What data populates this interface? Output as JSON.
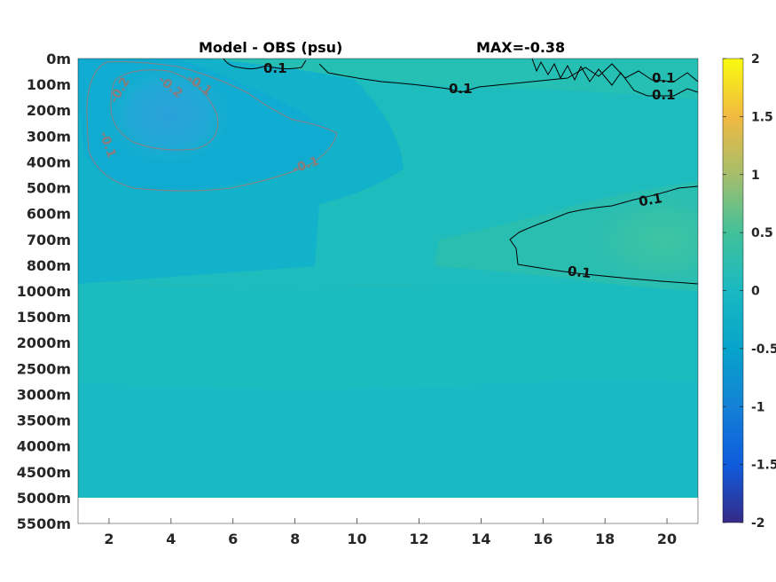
{
  "title": {
    "left": "Model - OBS (psu)",
    "right": "MAX=-0.38"
  },
  "chart_data": {
    "type": "heatmap",
    "title": "Model - OBS (psu)",
    "annotation": "MAX=-0.38",
    "x_ticks": [
      "2",
      "4",
      "6",
      "8",
      "10",
      "12",
      "14",
      "16",
      "18",
      "20"
    ],
    "xlim": [
      1,
      21
    ],
    "y_levels": [
      "0m",
      "100m",
      "200m",
      "300m",
      "400m",
      "500m",
      "600m",
      "700m",
      "800m",
      "1000m",
      "1500m",
      "2000m",
      "2500m",
      "3000m",
      "3500m",
      "4000m",
      "4500m",
      "5000m",
      "5500m"
    ],
    "data_bottom_level": "5000m",
    "colorbar": {
      "colormap": "parula",
      "range": [
        -2,
        2
      ],
      "ticks": [
        "2",
        "1.5",
        "1",
        "0.5",
        "0",
        "-0.5",
        "-1",
        "-1.5",
        "-2"
      ]
    },
    "field_color_example": {
      "high": "#fde725",
      "low": "#352a87",
      "zero": "#1ab9c2"
    },
    "regions": [
      {
        "name": "upper-left negative anomaly",
        "x_range": [
          1,
          9.5
        ],
        "depth_range": [
          "0m",
          "500m"
        ],
        "value": -0.3
      },
      {
        "name": "core minimum",
        "x_range": [
          2.5,
          5
        ],
        "depth_range": [
          "100m",
          "300m"
        ],
        "value": -0.38
      },
      {
        "name": "right-side positive anomaly",
        "x_range": [
          15,
          21
        ],
        "depth_range": [
          "500m",
          "1000m"
        ],
        "value": 0.15
      },
      {
        "name": "near-surface positive band",
        "x_range": [
          6,
          21
        ],
        "depth_range": [
          "0m",
          "100m"
        ],
        "value": 0.1
      },
      {
        "name": "deep water",
        "x_range": [
          1,
          21
        ],
        "depth_range": [
          "1000m",
          "5000m"
        ],
        "value": 0.02
      }
    ],
    "contour_labels": [
      {
        "text": "0.1",
        "x": 7.4,
        "depth": "0m"
      },
      {
        "text": "0.1",
        "x": 13.2,
        "depth": "100m"
      },
      {
        "text": "0.1",
        "x": 19.4,
        "depth": "100m"
      },
      {
        "text": "0.1",
        "x": 19.4,
        "depth": "100m"
      },
      {
        "text": "0.1",
        "x": 19.4,
        "depth": "600m"
      },
      {
        "text": "0.1",
        "x": 16.2,
        "depth": "800m"
      },
      {
        "text": "-0.2",
        "x": 2.1,
        "depth": "100m"
      },
      {
        "text": "-0.2",
        "x": 3.0,
        "depth": "100m"
      },
      {
        "text": "-0.1",
        "x": 3.9,
        "depth": "100m"
      },
      {
        "text": "-0.1",
        "x": 1.5,
        "depth": "300m"
      },
      {
        "text": "-0.1",
        "x": 8.2,
        "depth": "400m"
      }
    ]
  }
}
